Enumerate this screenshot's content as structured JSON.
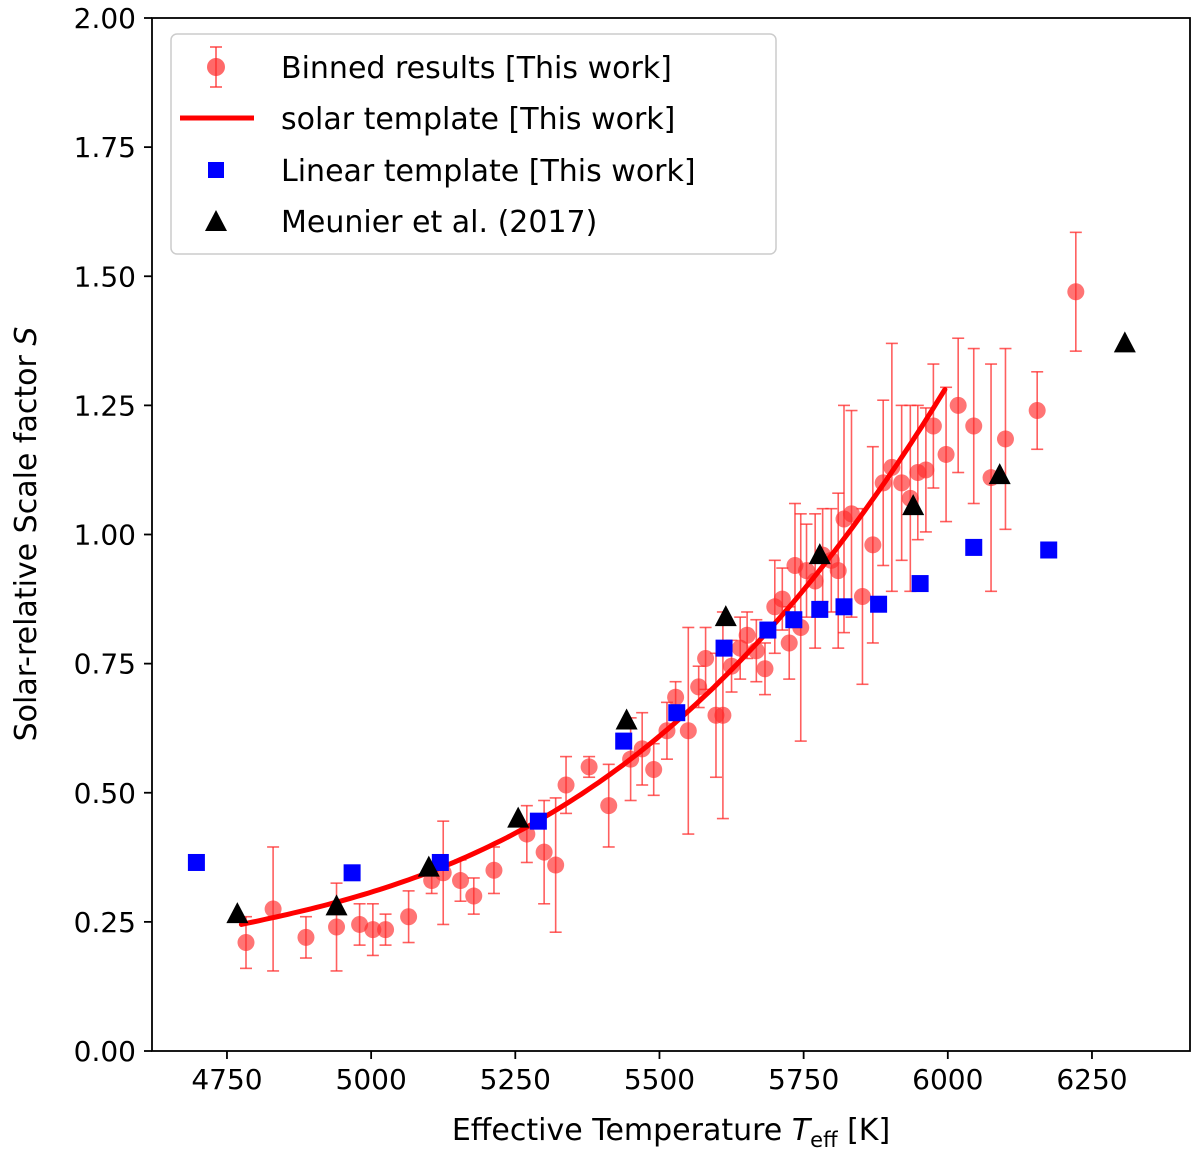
{
  "chart_data": {
    "type": "scatter",
    "xlabel": "Effective Temperature",
    "xlabel_symbol": "T",
    "xlabel_subscript": "eff",
    "xlabel_unit": "[K]",
    "ylabel": "Solar-relative Scale factor",
    "ylabel_symbol": "S",
    "xlim": [
      4620,
      6420
    ],
    "ylim": [
      0,
      2
    ],
    "xticks": [
      4750,
      5000,
      5250,
      5500,
      5750,
      6000,
      6250
    ],
    "yticks": [
      "0.00",
      "0.25",
      "0.50",
      "0.75",
      "1.00",
      "1.25",
      "1.50",
      "1.75",
      "2.00"
    ],
    "legend_position": "upper-left",
    "colors": {
      "binned": "#ff2a2a",
      "template": "#ff0000",
      "linear": "#0000ff",
      "meunier": "#000000"
    },
    "series": [
      {
        "name": "Binned results [This work]",
        "marker": "circle-errorbar",
        "points": [
          {
            "x": 4783,
            "y": 0.21,
            "err": 0.05
          },
          {
            "x": 4830,
            "y": 0.275,
            "err": 0.12
          },
          {
            "x": 4887,
            "y": 0.22,
            "err": 0.04
          },
          {
            "x": 4940,
            "y": 0.24,
            "err": 0.085
          },
          {
            "x": 4980,
            "y": 0.245,
            "err": 0.04
          },
          {
            "x": 5003,
            "y": 0.235,
            "err": 0.05
          },
          {
            "x": 5025,
            "y": 0.235,
            "err": 0.03
          },
          {
            "x": 5065,
            "y": 0.26,
            "err": 0.05
          },
          {
            "x": 5105,
            "y": 0.33,
            "err": 0.025
          },
          {
            "x": 5125,
            "y": 0.345,
            "err": 0.1
          },
          {
            "x": 5155,
            "y": 0.33,
            "err": 0.04
          },
          {
            "x": 5178,
            "y": 0.3,
            "err": 0.035
          },
          {
            "x": 5213,
            "y": 0.35,
            "err": 0.045
          },
          {
            "x": 5270,
            "y": 0.42,
            "err": 0.055
          },
          {
            "x": 5300,
            "y": 0.385,
            "err": 0.1
          },
          {
            "x": 5320,
            "y": 0.36,
            "err": 0.13
          },
          {
            "x": 5338,
            "y": 0.515,
            "err": 0.055
          },
          {
            "x": 5378,
            "y": 0.55,
            "err": 0.02
          },
          {
            "x": 5412,
            "y": 0.475,
            "err": 0.08
          },
          {
            "x": 5450,
            "y": 0.565,
            "err": 0.08
          },
          {
            "x": 5470,
            "y": 0.585,
            "err": 0.07
          },
          {
            "x": 5490,
            "y": 0.545,
            "err": 0.05
          },
          {
            "x": 5513,
            "y": 0.62,
            "err": 0.055
          },
          {
            "x": 5528,
            "y": 0.685,
            "err": 0.03
          },
          {
            "x": 5550,
            "y": 0.62,
            "err": 0.2
          },
          {
            "x": 5568,
            "y": 0.705,
            "err": 0.04
          },
          {
            "x": 5580,
            "y": 0.76,
            "err": 0.06
          },
          {
            "x": 5598,
            "y": 0.65,
            "err": 0.12
          },
          {
            "x": 5610,
            "y": 0.65,
            "err": 0.2
          },
          {
            "x": 5625,
            "y": 0.745,
            "err": 0.05
          },
          {
            "x": 5640,
            "y": 0.78,
            "err": 0.06
          },
          {
            "x": 5652,
            "y": 0.805,
            "err": 0.045
          },
          {
            "x": 5668,
            "y": 0.775,
            "err": 0.06
          },
          {
            "x": 5683,
            "y": 0.74,
            "err": 0.05
          },
          {
            "x": 5700,
            "y": 0.86,
            "err": 0.09
          },
          {
            "x": 5713,
            "y": 0.875,
            "err": 0.06
          },
          {
            "x": 5725,
            "y": 0.79,
            "err": 0.07
          },
          {
            "x": 5735,
            "y": 0.94,
            "err": 0.12
          },
          {
            "x": 5745,
            "y": 0.82,
            "err": 0.22
          },
          {
            "x": 5755,
            "y": 0.93,
            "err": 0.09
          },
          {
            "x": 5770,
            "y": 0.91,
            "err": 0.13
          },
          {
            "x": 5783,
            "y": 0.96,
            "err": 0.09
          },
          {
            "x": 5798,
            "y": 0.95,
            "err": 0.1
          },
          {
            "x": 5810,
            "y": 0.93,
            "err": 0.15
          },
          {
            "x": 5820,
            "y": 1.03,
            "err": 0.22
          },
          {
            "x": 5833,
            "y": 1.04,
            "err": 0.2
          },
          {
            "x": 5852,
            "y": 0.88,
            "err": 0.17
          },
          {
            "x": 5870,
            "y": 0.98,
            "err": 0.19
          },
          {
            "x": 5888,
            "y": 1.1,
            "err": 0.16
          },
          {
            "x": 5903,
            "y": 1.13,
            "err": 0.24
          },
          {
            "x": 5920,
            "y": 1.1,
            "err": 0.15
          },
          {
            "x": 5935,
            "y": 1.07,
            "err": 0.18
          },
          {
            "x": 5948,
            "y": 1.12,
            "err": 0.13
          },
          {
            "x": 5962,
            "y": 1.125,
            "err": 0.12
          },
          {
            "x": 5975,
            "y": 1.21,
            "err": 0.12
          },
          {
            "x": 5997,
            "y": 1.155,
            "err": 0.13
          },
          {
            "x": 6018,
            "y": 1.25,
            "err": 0.13
          },
          {
            "x": 6045,
            "y": 1.21,
            "err": 0.15
          },
          {
            "x": 6075,
            "y": 1.11,
            "err": 0.22
          },
          {
            "x": 6100,
            "y": 1.185,
            "err": 0.175
          },
          {
            "x": 6155,
            "y": 1.24,
            "err": 0.075
          },
          {
            "x": 6222,
            "y": 1.47,
            "err": 0.115
          }
        ]
      },
      {
        "name": "solar template [This work]",
        "marker": "line",
        "curve": {
          "x0": 4775,
          "a": 0.245,
          "b": 1.0,
          "c": 3.1,
          "c_scale_x": 1000,
          "x_start": 4775,
          "x_end": 6000
        }
      },
      {
        "name": "Linear template [This work]",
        "marker": "square",
        "points": [
          {
            "x": 4697,
            "y": 0.365
          },
          {
            "x": 4967,
            "y": 0.345
          },
          {
            "x": 5120,
            "y": 0.365
          },
          {
            "x": 5290,
            "y": 0.445
          },
          {
            "x": 5438,
            "y": 0.6
          },
          {
            "x": 5530,
            "y": 0.655
          },
          {
            "x": 5612,
            "y": 0.78
          },
          {
            "x": 5688,
            "y": 0.815
          },
          {
            "x": 5733,
            "y": 0.835
          },
          {
            "x": 5778,
            "y": 0.855
          },
          {
            "x": 5820,
            "y": 0.86
          },
          {
            "x": 5880,
            "y": 0.865
          },
          {
            "x": 5952,
            "y": 0.905
          },
          {
            "x": 6045,
            "y": 0.975
          },
          {
            "x": 6175,
            "y": 0.97
          }
        ]
      },
      {
        "name": "Meunier et al. (2017)",
        "marker": "triangle",
        "points": [
          {
            "x": 4768,
            "y": 0.265
          },
          {
            "x": 4940,
            "y": 0.28
          },
          {
            "x": 5100,
            "y": 0.355
          },
          {
            "x": 5255,
            "y": 0.45
          },
          {
            "x": 5443,
            "y": 0.64
          },
          {
            "x": 5615,
            "y": 0.84
          },
          {
            "x": 5778,
            "y": 0.96
          },
          {
            "x": 5940,
            "y": 1.055
          },
          {
            "x": 6090,
            "y": 1.115
          },
          {
            "x": 6307,
            "y": 1.37
          }
        ]
      }
    ]
  }
}
